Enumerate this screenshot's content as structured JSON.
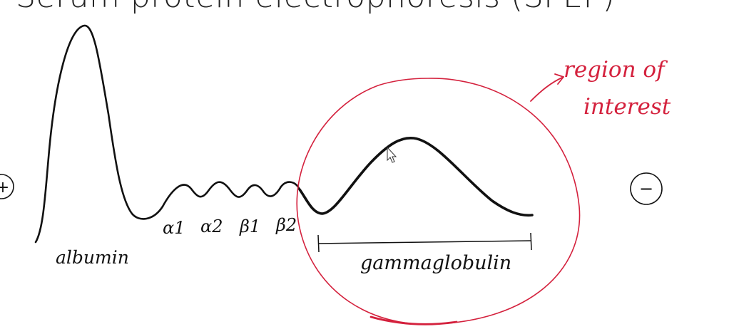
{
  "title": "Serum protein electrophoresis (SPEP)",
  "labels": {
    "albumin": "albumin",
    "alpha1": "α1",
    "alpha2": "α2",
    "beta1": "β1",
    "beta2": "β2",
    "gammaglobulin": "gammaglobulin",
    "annotation_line1": "region of",
    "annotation_line2": "interest",
    "left_electrode": "+",
    "right_electrode": "−"
  },
  "colors": {
    "ink": "#111111",
    "annotation": "#d4213d"
  },
  "icons": {
    "cursor": "mouse-pointer-icon"
  }
}
